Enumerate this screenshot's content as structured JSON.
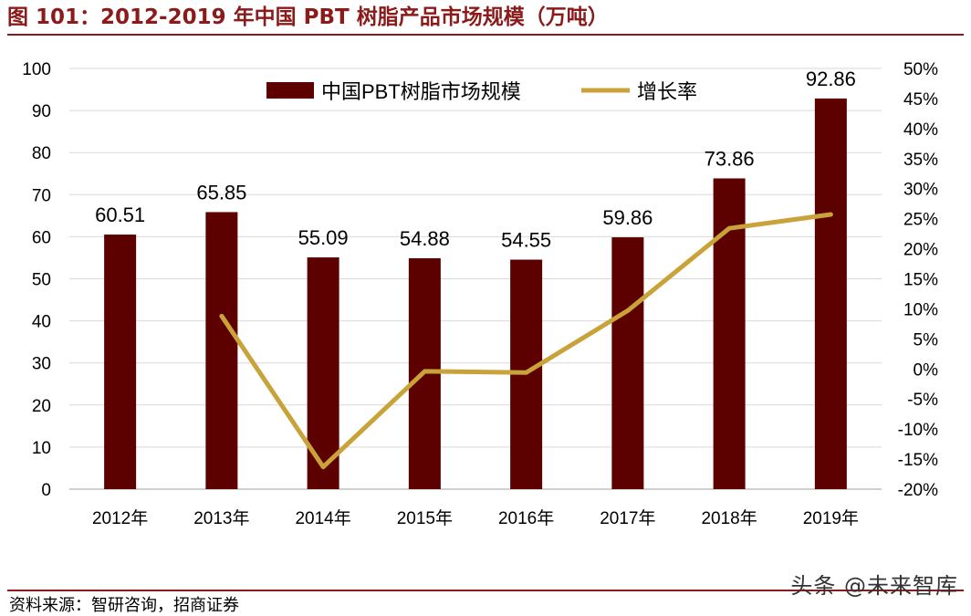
{
  "title": "图 101：2012-2019 年中国 PBT 树脂产品市场规模（万吨）",
  "source": "资料来源：智研咨询，招商证券",
  "watermark": "头条 @未来智库",
  "colors": {
    "bar": "#5c0000",
    "line": "#c9a23a",
    "title": "#8b1a1a",
    "grid": "#d9d9d9"
  },
  "chart_data": {
    "type": "bar",
    "title": "",
    "categories": [
      "2012年",
      "2013年",
      "2014年",
      "2015年",
      "2016年",
      "2017年",
      "2018年",
      "2019年"
    ],
    "series": [
      {
        "name": "中国PBT树脂市场规模",
        "type": "bar",
        "axis": "left",
        "values": [
          60.51,
          65.85,
          55.09,
          54.88,
          54.55,
          59.86,
          73.86,
          92.86
        ],
        "labels": [
          "60.51",
          "65.85",
          "55.09",
          "54.88",
          "54.55",
          "59.86",
          "73.86",
          "92.86"
        ]
      },
      {
        "name": "增长率",
        "type": "line",
        "axis": "right",
        "values": [
          null,
          8.8,
          -16.3,
          -0.4,
          -0.6,
          9.7,
          23.4,
          25.7
        ]
      }
    ],
    "y_left": {
      "min": 0,
      "max": 100,
      "step": 10,
      "ticks": [
        "0",
        "10",
        "20",
        "30",
        "40",
        "50",
        "60",
        "70",
        "80",
        "90",
        "100"
      ]
    },
    "y_right": {
      "min": -20,
      "max": 50,
      "step": 5,
      "ticks": [
        "-20%",
        "-15%",
        "-10%",
        "-5%",
        "0%",
        "5%",
        "10%",
        "15%",
        "20%",
        "25%",
        "30%",
        "35%",
        "40%",
        "45%",
        "50%"
      ]
    },
    "grid": true,
    "legend": "top-center"
  }
}
